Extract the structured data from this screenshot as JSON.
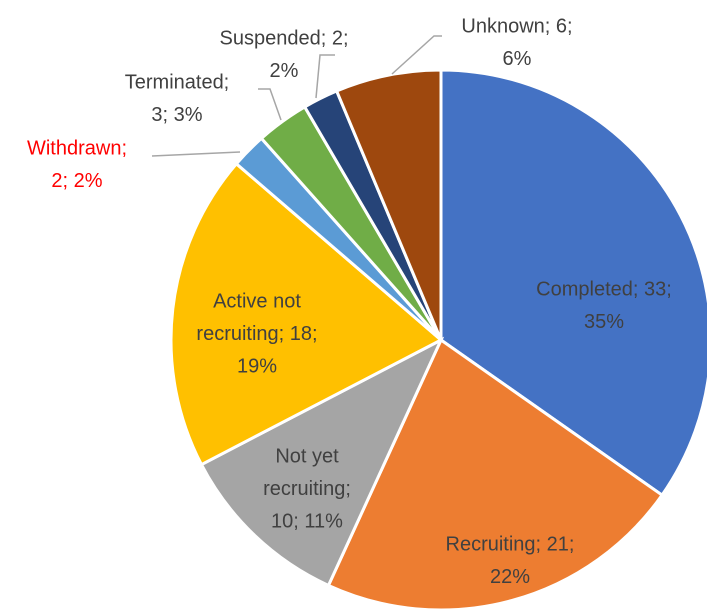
{
  "chart_data": {
    "type": "pie",
    "categories": [
      "Completed",
      "Recruiting",
      "Not yet recruiting",
      "Active not recruiting",
      "Withdrawn",
      "Terminated",
      "Suspended",
      "Unknown"
    ],
    "values": [
      33,
      21,
      10,
      18,
      2,
      3,
      2,
      6
    ],
    "value_labels": [
      [
        "Completed; 33;",
        "35%"
      ],
      [
        "Recruiting; 21;",
        "22%"
      ],
      [
        "Not yet",
        "recruiting;",
        "10; 11%"
      ],
      [
        "Active not",
        "recruiting; 18;",
        "19%"
      ],
      [
        "Withdrawn;",
        "2; 2%"
      ],
      [
        "Terminated;",
        "3; 3%"
      ],
      [
        "Suspended; 2;",
        "2%"
      ],
      [
        "Unknown; 6;",
        "6%"
      ]
    ],
    "colors": [
      "#4472c4",
      "#ed7d31",
      "#a5a5a5",
      "#ffc000",
      "#5b9bd5",
      "#70ad47",
      "#264478",
      "#9e480e"
    ],
    "label_colors": [
      "#404040",
      "#404040",
      "#404040",
      "#404040",
      "#ff0000",
      "#404040",
      "#404040",
      "#404040"
    ]
  }
}
